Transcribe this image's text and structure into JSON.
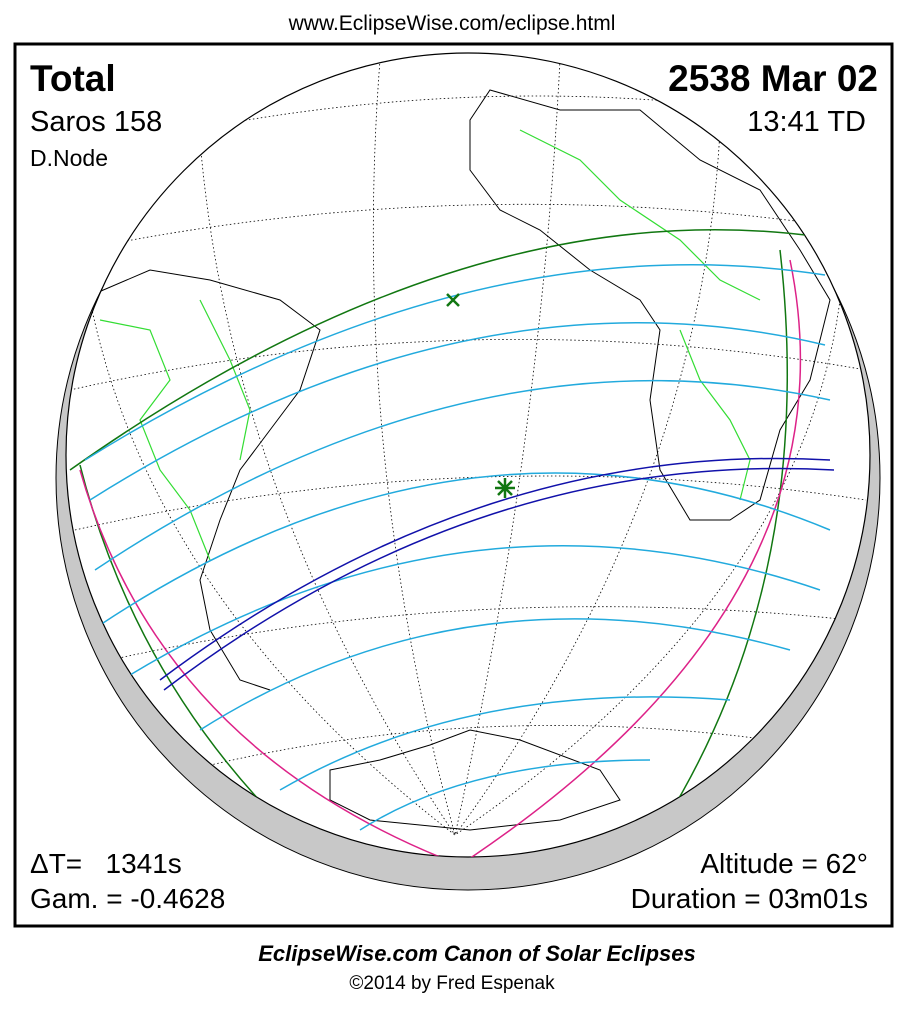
{
  "header": {
    "url": "www.EclipseWise.com/eclipse.html"
  },
  "map": {
    "eclipse_type": "Total",
    "date": "2538 Mar 02",
    "saros": "Saros 158",
    "time": "13:41 TD",
    "node": "D.Node",
    "delta_t": "ΔT=   1341s",
    "gamma": "Gam. = -0.4628",
    "altitude": "Altitude = 62°",
    "duration": "Duration = 03m01s"
  },
  "footer": {
    "title": "EclipseWise.com Canon of Solar Eclipses",
    "copyright": "©2014 by Fred Espenak"
  }
}
